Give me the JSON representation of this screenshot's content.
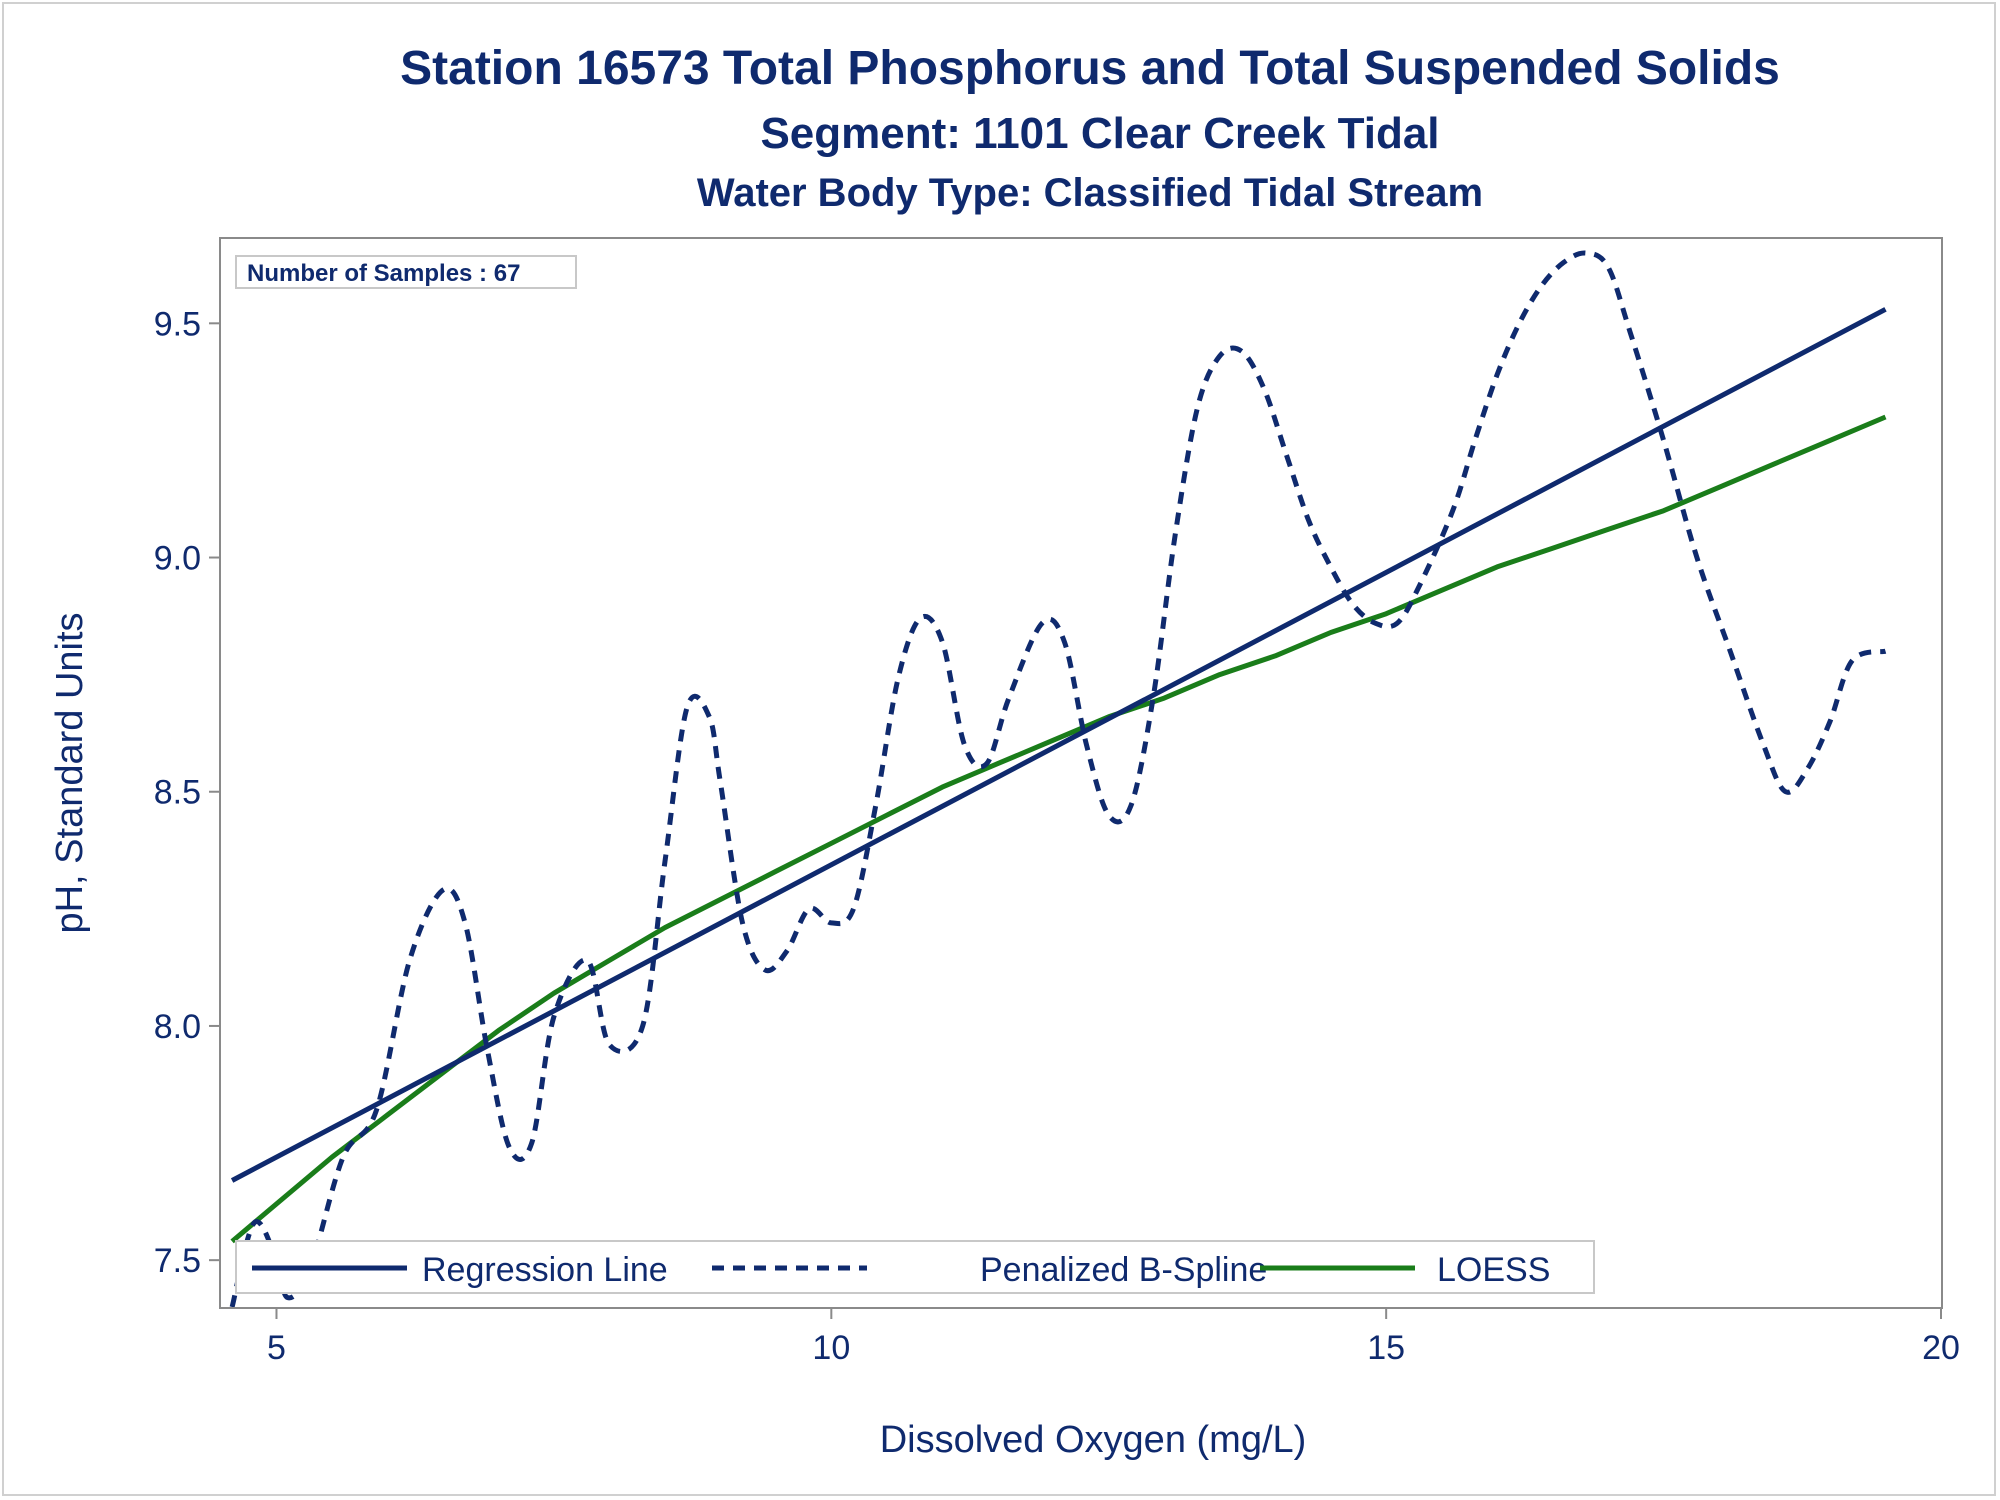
{
  "chart_data": {
    "type": "line",
    "title": "Station 16573  Total Phosphorus and Total Suspended Solids",
    "subtitle": "Segment: 1101  Clear Creek Tidal",
    "subtitle2": "Water Body Type: Classified Tidal Stream",
    "xlabel": "Dissolved Oxygen (mg/L)",
    "ylabel": "pH, Standard Units",
    "xlim": [
      4.5,
      20
    ],
    "ylim": [
      7.4,
      9.68
    ],
    "x_ticks": [
      5,
      10,
      15,
      20
    ],
    "x_tick_labels": [
      "5",
      "10",
      "15",
      "20"
    ],
    "y_ticks": [
      7.5,
      8.0,
      8.5,
      9.0,
      9.5
    ],
    "y_tick_labels": [
      "7.5",
      "8.0",
      "8.5",
      "9.0",
      "9.5"
    ],
    "grid": false,
    "legend_position": "bottom-inside",
    "inset_label": "Number of Samples : 67",
    "series": [
      {
        "name": "Regression Line",
        "style": "solid",
        "color": "#0f2a6e",
        "x": [
          4.6,
          19.5
        ],
        "y": [
          7.67,
          9.53
        ]
      },
      {
        "name": "Penalized B-Spline",
        "style": "dashed",
        "color": "#0f2a6e",
        "x": [
          4.6,
          4.8,
          5.0,
          5.1,
          5.3,
          5.6,
          5.9,
          6.2,
          6.5,
          6.7,
          6.9,
          7.1,
          7.3,
          7.5,
          7.8,
          8.0,
          8.3,
          8.5,
          8.7,
          8.9,
          9.0,
          9.2,
          9.4,
          9.6,
          9.8,
          10.0,
          10.2,
          10.4,
          10.6,
          10.8,
          11.0,
          11.2,
          11.4,
          11.6,
          11.9,
          12.1,
          12.3,
          12.5,
          12.7,
          12.9,
          13.1,
          13.3,
          13.5,
          13.7,
          13.9,
          14.1,
          14.3,
          14.5,
          14.7,
          14.9,
          15.1,
          15.3,
          15.6,
          15.8,
          16.0,
          16.2,
          16.4,
          16.6,
          16.8,
          17.0,
          17.2,
          17.5,
          17.8,
          18.1,
          18.4,
          18.6,
          18.8,
          19.0,
          19.2,
          19.5
        ],
        "y": [
          7.4,
          7.58,
          7.5,
          7.42,
          7.48,
          7.72,
          7.82,
          8.14,
          8.29,
          8.22,
          7.95,
          7.74,
          7.75,
          8.02,
          8.14,
          7.96,
          8.0,
          8.35,
          8.68,
          8.66,
          8.52,
          8.22,
          8.12,
          8.16,
          8.25,
          8.22,
          8.25,
          8.47,
          8.74,
          8.87,
          8.82,
          8.6,
          8.56,
          8.7,
          8.86,
          8.82,
          8.6,
          8.45,
          8.47,
          8.7,
          9.05,
          9.32,
          9.43,
          9.44,
          9.36,
          9.22,
          9.08,
          8.98,
          8.9,
          8.86,
          8.86,
          8.94,
          9.1,
          9.25,
          9.39,
          9.5,
          9.58,
          9.63,
          9.65,
          9.62,
          9.48,
          9.25,
          9.0,
          8.8,
          8.6,
          8.5,
          8.55,
          8.65,
          8.78,
          8.8
        ]
      },
      {
        "name": "LOESS",
        "style": "solid",
        "color": "#1a7d1a",
        "x": [
          4.6,
          5.0,
          5.5,
          6.0,
          6.5,
          7.0,
          7.5,
          8.0,
          8.5,
          9.0,
          9.5,
          10.0,
          10.5,
          11.0,
          11.5,
          12.0,
          12.5,
          13.0,
          13.5,
          14.0,
          14.5,
          15.0,
          15.5,
          16.0,
          16.5,
          17.0,
          17.5,
          18.0,
          18.5,
          19.0,
          19.5
        ],
        "y": [
          7.54,
          7.62,
          7.72,
          7.81,
          7.9,
          7.99,
          8.07,
          8.14,
          8.21,
          8.27,
          8.33,
          8.39,
          8.45,
          8.51,
          8.56,
          8.61,
          8.66,
          8.7,
          8.75,
          8.79,
          8.84,
          8.88,
          8.93,
          8.98,
          9.02,
          9.06,
          9.1,
          9.15,
          9.2,
          9.25,
          9.3
        ]
      }
    ]
  }
}
